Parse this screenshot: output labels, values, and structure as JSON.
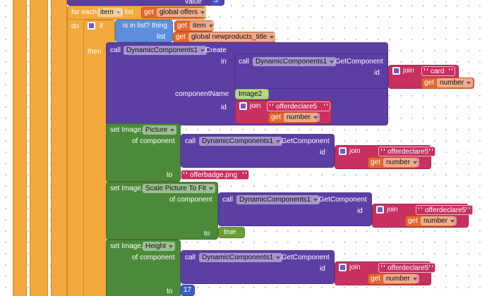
{
  "value_block": {
    "label": "value",
    "number": 3
  },
  "for_each": {
    "label": "for each",
    "variable": "item",
    "in_list": "in list",
    "get": "get",
    "list": "global offers"
  },
  "control": {
    "do": "do",
    "if": "if",
    "then": "then"
  },
  "is_in_list": {
    "label": "is in list? thing",
    "get": "get",
    "thing": "item",
    "list_label": "list",
    "list_get": "get",
    "list": "global newproducts_title"
  },
  "create": {
    "call": "call",
    "component": "DynamicComponents1",
    "method": ".Create",
    "in": "in",
    "get_component": {
      "call": "call",
      "component": "DynamicComponents1",
      "method": ".GetComponent",
      "id": "id",
      "join": "join",
      "text": "card",
      "get": "get",
      "variable": "number"
    },
    "component_name_label": "componentName",
    "component_name": "Image2",
    "id": "id",
    "join": "join",
    "text": "offerdeclare5",
    "get": "get",
    "variable": "number"
  },
  "setters": [
    {
      "set": "set Image.",
      "property": "Picture",
      "of_component": "of component",
      "call": "call",
      "component": "DynamicComponents1",
      "method": ".GetComponent",
      "id": "id",
      "join": "join",
      "text": "offerdeclare5",
      "get": "get",
      "variable": "number",
      "to": "to",
      "value": "offerbadge.png"
    },
    {
      "set": "set Image.",
      "property": "Scale Picture To Fit",
      "of_component": "of component",
      "call": "call",
      "component": "DynamicComponents1",
      "method": ".GetComponent",
      "id": "id",
      "join": "join",
      "text": "offerdeclare5",
      "get": "get",
      "variable": "number",
      "to": "to",
      "value": "true"
    },
    {
      "set": "set Image.",
      "property": "Height",
      "of_component": "of component",
      "call": "call",
      "component": "DynamicComponents1",
      "method": ".GetComponent",
      "id": "id",
      "join": "join",
      "text": "offerdeclare5",
      "get": "get",
      "variable": "number",
      "to": "to",
      "value": 17
    }
  ]
}
